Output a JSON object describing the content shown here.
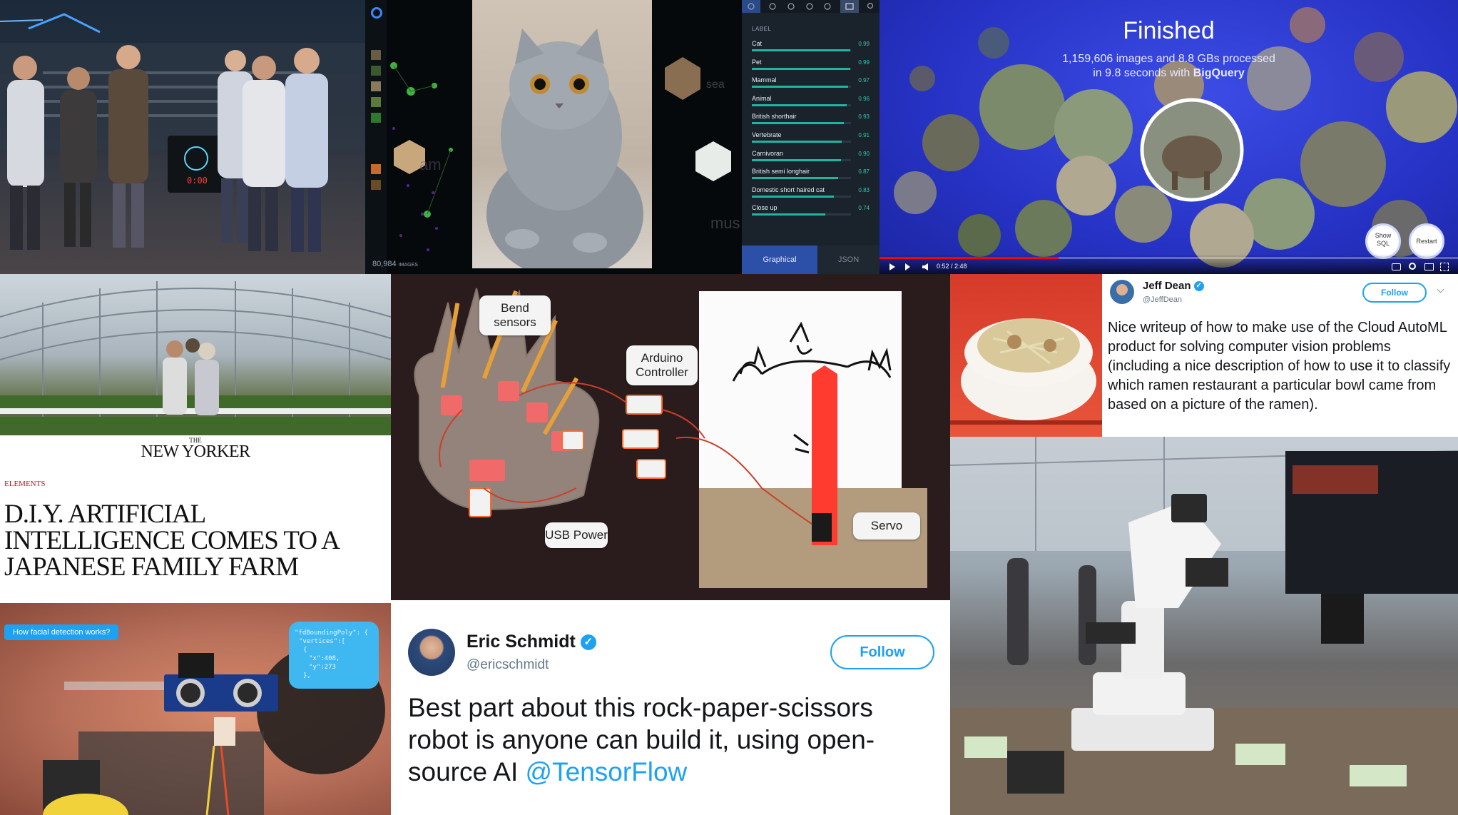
{
  "vision_demo": {
    "image_count": "80,984",
    "image_count_unit": "IMAGES",
    "header": "LABEL",
    "labels": [
      {
        "name": "Cat",
        "score": "0.99",
        "value": 0.99
      },
      {
        "name": "Pet",
        "score": "0.99",
        "value": 0.99
      },
      {
        "name": "Mammal",
        "score": "0.97",
        "value": 0.97
      },
      {
        "name": "Animal",
        "score": "0.96",
        "value": 0.96
      },
      {
        "name": "British shorthair",
        "score": "0.93",
        "value": 0.93
      },
      {
        "name": "Vertebrate",
        "score": "0.91",
        "value": 0.91
      },
      {
        "name": "Carnivoran",
        "score": "0.90",
        "value": 0.9
      },
      {
        "name": "British semi longhair",
        "score": "0.87",
        "value": 0.87
      },
      {
        "name": "Domestic short haired cat",
        "score": "0.83",
        "value": 0.83
      },
      {
        "name": "Close up",
        "score": "0.74",
        "value": 0.74
      }
    ],
    "tabs": [
      "Graphical",
      "JSON"
    ],
    "bg_words": [
      "am",
      "sea",
      "mus"
    ]
  },
  "bigquery": {
    "title": "Finished",
    "line1": "1,159,606 images and 8.8 GBs processed",
    "line2_prefix": "in 9.8 seconds with ",
    "line2_brand": "BigQuery",
    "btn_show_sql": "Show SQL",
    "btn_restart": "Restart",
    "time": "0:52 / 2:48",
    "progress": 0.31
  },
  "new_yorker": {
    "logo_the": "THE",
    "logo_name": "NEW YORKER",
    "section": "ELEMENTS",
    "headline": "D.I.Y. ARTIFICIAL INTELLIGENCE COMES TO A JAPANESE FAMILY FARM"
  },
  "robot_glove": {
    "bend_sensors": "Bend sensors",
    "arduino": "Arduino Controller",
    "usb_power": "USB Power",
    "servo": "Servo"
  },
  "jeff_dean_tweet": {
    "name": "Jeff Dean",
    "handle": "@JeffDean",
    "follow": "Follow",
    "text": "Nice writeup of how to make use of the Cloud AutoML product for solving computer vision problems (including a nice description of how to use it to classify which ramen restaurant a particular bowl came from based on a picture of the ramen)."
  },
  "face_detection": {
    "bubble_title": "How facial detection works?",
    "json_line1": "\"fdBoundingPoly\": {",
    "json_line2": "\"vertices\":[",
    "json_line3": "{",
    "json_line4": "\"x\":408,",
    "json_line5": "\"y\":273",
    "json_line6": "},"
  },
  "eric_schmidt_tweet": {
    "name": "Eric Schmidt",
    "handle": "@ericschmidt",
    "follow": "Follow",
    "text": "Best part about this rock-paper-scissors robot is anyone can build it, using open-source AI ",
    "mention": "@TensorFlow"
  },
  "colors": {
    "twitter_blue": "#1da1f2",
    "teal": "#1fb5a2",
    "bigquery_bg": "#2632c4",
    "new_yorker_red": "#c8102e"
  }
}
